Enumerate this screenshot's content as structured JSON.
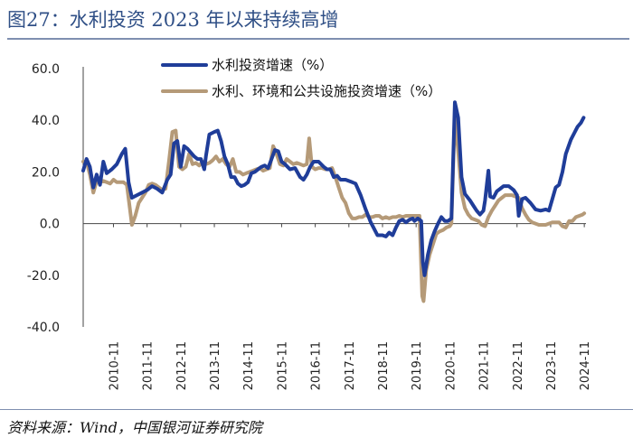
{
  "header": {
    "title": "图27：水利投资 2023 年以来持续高增"
  },
  "footer": {
    "source": "资料来源：Wind，中国银河证券研究院"
  },
  "colors": {
    "series1": "#1f3d99",
    "series2": "#b59a78",
    "axis": "#444444",
    "title": "#2f4f86"
  },
  "chart_data": {
    "type": "line",
    "title": "图27：水利投资 2023 年以来持续高增",
    "xlabel": "",
    "ylabel": "",
    "ylim": [
      -40,
      60
    ],
    "y_ticks": [
      60,
      40,
      20,
      0,
      -20,
      -40
    ],
    "y_tick_labels": [
      "60.0",
      "40.0",
      "20.0",
      "0.0",
      "-20.0",
      "-40.0"
    ],
    "x_range": [
      2010.0,
      2024.95
    ],
    "x_ticks": [
      2010.9,
      2011.9,
      2012.9,
      2013.9,
      2014.9,
      2015.9,
      2016.9,
      2017.9,
      2018.9,
      2019.9,
      2020.9,
      2021.9,
      2022.9,
      2023.9,
      2024.9
    ],
    "x_tick_labels": [
      "2010-11",
      "2011-11",
      "2012-11",
      "2013-11",
      "2014-11",
      "2015-11",
      "2016-11",
      "2017-11",
      "2018-11",
      "2019-11",
      "2020-11",
      "2021-11",
      "2022-11",
      "2023-11",
      "2024-11"
    ],
    "grid": false,
    "legend_position": "top-center",
    "series": [
      {
        "name": "水利投资增速（%）",
        "points": [
          [
            2010.0,
            20.5
          ],
          [
            2010.1,
            25.0
          ],
          [
            2010.2,
            22.0
          ],
          [
            2010.3,
            14.0
          ],
          [
            2010.4,
            19.0
          ],
          [
            2010.5,
            15.0
          ],
          [
            2010.6,
            24.0
          ],
          [
            2010.7,
            19.5
          ],
          [
            2010.85,
            21.0
          ],
          [
            2011.0,
            23.0
          ],
          [
            2011.15,
            27.0
          ],
          [
            2011.25,
            29.0
          ],
          [
            2011.35,
            16.0
          ],
          [
            2011.45,
            10.0
          ],
          [
            2011.6,
            11.0
          ],
          [
            2011.75,
            12.0
          ],
          [
            2011.9,
            13.0
          ],
          [
            2012.05,
            14.5
          ],
          [
            2012.2,
            13.5
          ],
          [
            2012.35,
            12.0
          ],
          [
            2012.5,
            17.0
          ],
          [
            2012.6,
            19.0
          ],
          [
            2012.7,
            31.0
          ],
          [
            2012.8,
            32.0
          ],
          [
            2012.9,
            22.0
          ],
          [
            2013.0,
            30.0
          ],
          [
            2013.1,
            29.0
          ],
          [
            2013.2,
            27.5
          ],
          [
            2013.3,
            26.0
          ],
          [
            2013.4,
            25.0
          ],
          [
            2013.5,
            25.0
          ],
          [
            2013.6,
            21.0
          ],
          [
            2013.65,
            26.0
          ],
          [
            2013.75,
            34.5
          ],
          [
            2013.9,
            35.5
          ],
          [
            2014.0,
            36.0
          ],
          [
            2014.1,
            32.0
          ],
          [
            2014.2,
            26.0
          ],
          [
            2014.3,
            23.0
          ],
          [
            2014.4,
            18.0
          ],
          [
            2014.5,
            18.0
          ],
          [
            2014.6,
            15.5
          ],
          [
            2014.7,
            14.5
          ],
          [
            2014.8,
            15.0
          ],
          [
            2014.9,
            16.0
          ],
          [
            2015.0,
            19.5
          ],
          [
            2015.1,
            20.0
          ],
          [
            2015.2,
            21.0
          ],
          [
            2015.3,
            22.0
          ],
          [
            2015.4,
            22.5
          ],
          [
            2015.5,
            21.5
          ],
          [
            2015.6,
            25.0
          ],
          [
            2015.7,
            28.5
          ],
          [
            2015.8,
            28.0
          ],
          [
            2015.9,
            24.0
          ],
          [
            2016.0,
            23.0
          ],
          [
            2016.15,
            21.0
          ],
          [
            2016.3,
            21.5
          ],
          [
            2016.45,
            18.0
          ],
          [
            2016.55,
            17.0
          ],
          [
            2016.65,
            19.0
          ],
          [
            2016.75,
            22.0
          ],
          [
            2016.85,
            24.0
          ],
          [
            2017.0,
            24.0
          ],
          [
            2017.15,
            22.0
          ],
          [
            2017.25,
            21.0
          ],
          [
            2017.35,
            21.0
          ],
          [
            2017.45,
            18.0
          ],
          [
            2017.55,
            18.5
          ],
          [
            2017.65,
            17.0
          ],
          [
            2017.8,
            17.0
          ],
          [
            2017.9,
            16.5
          ],
          [
            2018.0,
            16.0
          ],
          [
            2018.1,
            15.5
          ],
          [
            2018.25,
            11.0
          ],
          [
            2018.4,
            5.5
          ],
          [
            2018.55,
            0.5
          ],
          [
            2018.65,
            -2.0
          ],
          [
            2018.75,
            -4.5
          ],
          [
            2018.9,
            -4.5
          ],
          [
            2019.0,
            -5.0
          ],
          [
            2019.1,
            -3.5
          ],
          [
            2019.2,
            -4.5
          ],
          [
            2019.3,
            -1.5
          ],
          [
            2019.4,
            1.0
          ],
          [
            2019.5,
            1.5
          ],
          [
            2019.6,
            0.5
          ],
          [
            2019.7,
            1.5
          ],
          [
            2019.8,
            2.0
          ],
          [
            2019.85,
            1.0
          ],
          [
            2019.95,
            2.0
          ],
          [
            2020.05,
            1.0
          ],
          [
            2020.1,
            -15.0
          ],
          [
            2020.15,
            -20.0
          ],
          [
            2020.25,
            -12.0
          ],
          [
            2020.35,
            -6.5
          ],
          [
            2020.45,
            -3.0
          ],
          [
            2020.55,
            0.0
          ],
          [
            2020.65,
            2.5
          ],
          [
            2020.75,
            1.0
          ],
          [
            2020.85,
            1.0
          ],
          [
            2020.95,
            2.0
          ],
          [
            2021.05,
            47.0
          ],
          [
            2021.15,
            41.0
          ],
          [
            2021.25,
            18.0
          ],
          [
            2021.35,
            11.5
          ],
          [
            2021.5,
            9.0
          ],
          [
            2021.6,
            7.0
          ],
          [
            2021.7,
            5.0
          ],
          [
            2021.8,
            3.5
          ],
          [
            2021.9,
            5.0
          ],
          [
            2021.95,
            9.0
          ],
          [
            2022.05,
            20.5
          ],
          [
            2022.1,
            10.5
          ],
          [
            2022.2,
            10.0
          ],
          [
            2022.3,
            12.5
          ],
          [
            2022.4,
            13.5
          ],
          [
            2022.5,
            14.5
          ],
          [
            2022.65,
            14.5
          ],
          [
            2022.8,
            13.0
          ],
          [
            2022.9,
            11.0
          ],
          [
            2022.95,
            3.0
          ],
          [
            2023.05,
            9.5
          ],
          [
            2023.15,
            10.0
          ],
          [
            2023.3,
            8.0
          ],
          [
            2023.45,
            5.5
          ],
          [
            2023.6,
            5.0
          ],
          [
            2023.75,
            5.5
          ],
          [
            2023.85,
            5.0
          ],
          [
            2023.95,
            9.5
          ],
          [
            2024.05,
            14.0
          ],
          [
            2024.15,
            15.0
          ],
          [
            2024.25,
            20.0
          ],
          [
            2024.35,
            27.0
          ],
          [
            2024.5,
            32.5
          ],
          [
            2024.6,
            35.0
          ],
          [
            2024.7,
            37.5
          ],
          [
            2024.8,
            39.0
          ],
          [
            2024.88,
            41.0
          ]
        ]
      },
      {
        "name": "水利、环境和公共设施投资增速（%）",
        "points": [
          [
            2010.0,
            24.0
          ],
          [
            2010.1,
            24.0
          ],
          [
            2010.2,
            19.0
          ],
          [
            2010.3,
            12.0
          ],
          [
            2010.4,
            16.5
          ],
          [
            2010.5,
            16.0
          ],
          [
            2010.6,
            16.5
          ],
          [
            2010.7,
            16.0
          ],
          [
            2010.8,
            15.5
          ],
          [
            2010.9,
            17.0
          ],
          [
            2011.0,
            16.0
          ],
          [
            2011.1,
            16.0
          ],
          [
            2011.2,
            16.0
          ],
          [
            2011.3,
            15.0
          ],
          [
            2011.45,
            -0.5
          ],
          [
            2011.55,
            3.0
          ],
          [
            2011.65,
            8.0
          ],
          [
            2011.75,
            10.0
          ],
          [
            2011.85,
            12.0
          ],
          [
            2011.95,
            15.0
          ],
          [
            2012.05,
            15.5
          ],
          [
            2012.15,
            15.0
          ],
          [
            2012.25,
            14.0
          ],
          [
            2012.35,
            13.0
          ],
          [
            2012.45,
            13.5
          ],
          [
            2012.55,
            24.0
          ],
          [
            2012.65,
            35.5
          ],
          [
            2012.75,
            36.0
          ],
          [
            2012.85,
            22.0
          ],
          [
            2012.95,
            21.0
          ],
          [
            2013.05,
            22.0
          ],
          [
            2013.15,
            27.0
          ],
          [
            2013.25,
            23.0
          ],
          [
            2013.35,
            23.5
          ],
          [
            2013.45,
            22.5
          ],
          [
            2013.55,
            24.0
          ],
          [
            2013.65,
            23.0
          ],
          [
            2013.75,
            23.5
          ],
          [
            2013.85,
            24.5
          ],
          [
            2013.95,
            26.0
          ],
          [
            2014.05,
            24.0
          ],
          [
            2014.15,
            25.0
          ],
          [
            2014.25,
            23.0
          ],
          [
            2014.35,
            22.0
          ],
          [
            2014.45,
            25.0
          ],
          [
            2014.55,
            20.0
          ],
          [
            2014.65,
            20.0
          ],
          [
            2014.75,
            19.0
          ],
          [
            2014.85,
            19.5
          ],
          [
            2014.95,
            20.0
          ],
          [
            2015.05,
            20.5
          ],
          [
            2015.15,
            21.0
          ],
          [
            2015.25,
            21.5
          ],
          [
            2015.35,
            20.5
          ],
          [
            2015.45,
            21.0
          ],
          [
            2015.55,
            21.5
          ],
          [
            2015.65,
            30.0
          ],
          [
            2015.75,
            27.0
          ],
          [
            2015.85,
            23.0
          ],
          [
            2015.95,
            22.5
          ],
          [
            2016.05,
            25.0
          ],
          [
            2016.15,
            24.0
          ],
          [
            2016.25,
            23.0
          ],
          [
            2016.35,
            23.5
          ],
          [
            2016.45,
            23.0
          ],
          [
            2016.55,
            22.5
          ],
          [
            2016.65,
            23.0
          ],
          [
            2016.72,
            33.0
          ],
          [
            2016.8,
            22.0
          ],
          [
            2016.9,
            21.0
          ],
          [
            2017.0,
            21.5
          ],
          [
            2017.1,
            21.5
          ],
          [
            2017.2,
            21.0
          ],
          [
            2017.3,
            21.0
          ],
          [
            2017.4,
            21.5
          ],
          [
            2017.5,
            18.0
          ],
          [
            2017.6,
            14.0
          ],
          [
            2017.7,
            10.0
          ],
          [
            2017.8,
            8.0
          ],
          [
            2017.9,
            4.0
          ],
          [
            2018.0,
            2.0
          ],
          [
            2018.1,
            2.0
          ],
          [
            2018.2,
            2.5
          ],
          [
            2018.3,
            2.5
          ],
          [
            2018.4,
            3.5
          ],
          [
            2018.5,
            2.5
          ],
          [
            2018.6,
            2.5
          ],
          [
            2018.7,
            3.0
          ],
          [
            2018.8,
            3.0
          ],
          [
            2018.9,
            2.0
          ],
          [
            2019.0,
            2.5
          ],
          [
            2019.1,
            2.0
          ],
          [
            2019.2,
            2.5
          ],
          [
            2019.3,
            2.5
          ],
          [
            2019.4,
            3.0
          ],
          [
            2019.5,
            2.5
          ],
          [
            2019.6,
            3.0
          ],
          [
            2019.7,
            3.0
          ],
          [
            2019.8,
            3.0
          ],
          [
            2019.9,
            3.0
          ],
          [
            2020.0,
            3.0
          ],
          [
            2020.08,
            -28.0
          ],
          [
            2020.12,
            -30.0
          ],
          [
            2020.2,
            -18.0
          ],
          [
            2020.3,
            -12.0
          ],
          [
            2020.4,
            -8.0
          ],
          [
            2020.5,
            -4.0
          ],
          [
            2020.6,
            -3.0
          ],
          [
            2020.7,
            -2.5
          ],
          [
            2020.8,
            -1.5
          ],
          [
            2020.9,
            -1.0
          ],
          [
            2020.95,
            0.0
          ],
          [
            2021.05,
            42.0
          ],
          [
            2021.15,
            28.0
          ],
          [
            2021.25,
            12.0
          ],
          [
            2021.35,
            6.0
          ],
          [
            2021.45,
            3.5
          ],
          [
            2021.55,
            2.0
          ],
          [
            2021.65,
            1.5
          ],
          [
            2021.75,
            1.0
          ],
          [
            2021.85,
            -0.5
          ],
          [
            2021.95,
            -1.0
          ],
          [
            2022.05,
            2.5
          ],
          [
            2022.15,
            5.0
          ],
          [
            2022.25,
            7.0
          ],
          [
            2022.35,
            9.0
          ],
          [
            2022.45,
            10.0
          ],
          [
            2022.55,
            11.0
          ],
          [
            2022.65,
            11.0
          ],
          [
            2022.75,
            11.0
          ],
          [
            2022.85,
            10.5
          ],
          [
            2022.95,
            10.0
          ],
          [
            2023.05,
            6.0
          ],
          [
            2023.15,
            3.5
          ],
          [
            2023.25,
            1.5
          ],
          [
            2023.35,
            0.5
          ],
          [
            2023.45,
            0.0
          ],
          [
            2023.55,
            -0.5
          ],
          [
            2023.65,
            -0.5
          ],
          [
            2023.75,
            -0.5
          ],
          [
            2023.85,
            0.0
          ],
          [
            2023.95,
            0.5
          ],
          [
            2024.05,
            0.5
          ],
          [
            2024.15,
            0.5
          ],
          [
            2024.25,
            -1.0
          ],
          [
            2024.35,
            -1.5
          ],
          [
            2024.45,
            1.0
          ],
          [
            2024.55,
            1.0
          ],
          [
            2024.65,
            2.5
          ],
          [
            2024.75,
            3.0
          ],
          [
            2024.85,
            3.5
          ],
          [
            2024.9,
            4.0
          ]
        ]
      }
    ]
  }
}
